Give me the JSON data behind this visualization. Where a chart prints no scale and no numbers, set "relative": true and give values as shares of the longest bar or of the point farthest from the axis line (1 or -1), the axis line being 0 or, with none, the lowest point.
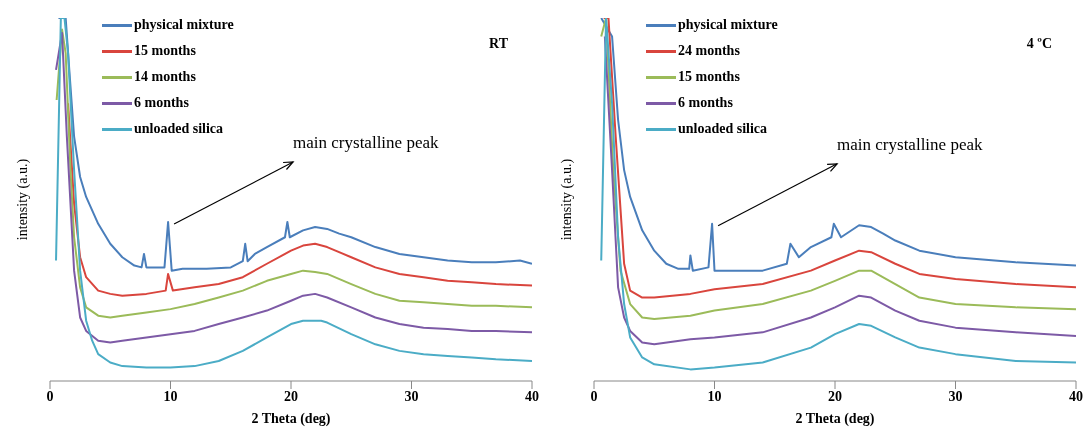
{
  "chart_data": [
    {
      "type": "line",
      "xlabel": "2 Theta (deg)",
      "ylabel": "intensity (a.u.)",
      "relative": true,
      "xlim": [
        0,
        40
      ],
      "xticks": [
        0,
        10,
        20,
        30,
        40
      ],
      "legend": "top left",
      "marker": "none",
      "grid": false,
      "annotations": [
        "RT",
        {
          "text": "main crystalline peak",
          "x": 9.8,
          "y": 0.438
        }
      ],
      "series": [
        {
          "name": "physical mixture",
          "color": "#4a7ebb",
          "x": [
            0.7,
            1.3,
            1.6,
            2,
            2.5,
            3,
            4,
            5,
            6,
            7,
            7.6,
            7.8,
            8,
            9.5,
            9.8,
            10.1,
            11,
            13,
            15,
            16,
            16.2,
            16.4,
            17,
            18,
            19.5,
            19.7,
            19.9,
            21,
            22,
            23,
            24,
            25,
            27,
            29,
            31,
            33,
            35,
            37,
            39,
            40
          ],
          "values": [
            1.0,
            1.0,
            0.857,
            0.673,
            0.562,
            0.507,
            0.433,
            0.378,
            0.341,
            0.318,
            0.313,
            0.35,
            0.313,
            0.313,
            0.438,
            0.304,
            0.309,
            0.309,
            0.313,
            0.33,
            0.378,
            0.33,
            0.35,
            0.369,
            0.396,
            0.438,
            0.396,
            0.415,
            0.424,
            0.419,
            0.406,
            0.396,
            0.369,
            0.35,
            0.341,
            0.332,
            0.327,
            0.327,
            0.332,
            0.323
          ]
        },
        {
          "name": "15 months",
          "color": "#d9453d",
          "x": [
            1.5,
            2,
            2.5,
            3,
            4,
            5,
            6,
            8,
            9.6,
            9.8,
            10.2,
            12,
            14,
            16,
            18,
            20,
            21,
            22,
            23,
            25,
            27,
            29,
            31,
            33,
            35,
            37,
            40
          ],
          "values": [
            0.765,
            0.488,
            0.341,
            0.286,
            0.249,
            0.24,
            0.235,
            0.24,
            0.249,
            0.295,
            0.249,
            0.258,
            0.267,
            0.286,
            0.323,
            0.359,
            0.373,
            0.378,
            0.369,
            0.341,
            0.313,
            0.295,
            0.286,
            0.276,
            0.272,
            0.267,
            0.263
          ]
        },
        {
          "name": "14 months",
          "color": "#9bbb59",
          "x": [
            0.55,
            1.0,
            1.3,
            1.7,
            2,
            2.5,
            3,
            4,
            5,
            6,
            8,
            10,
            12,
            14,
            16,
            18,
            20,
            21,
            22,
            23,
            25,
            27,
            29,
            31,
            33,
            35,
            37,
            40
          ],
          "values": [
            0.774,
            0.968,
            0.903,
            0.581,
            0.396,
            0.258,
            0.203,
            0.18,
            0.175,
            0.18,
            0.189,
            0.198,
            0.212,
            0.23,
            0.249,
            0.276,
            0.295,
            0.304,
            0.3,
            0.295,
            0.267,
            0.24,
            0.221,
            0.217,
            0.212,
            0.207,
            0.207,
            0.203
          ]
        },
        {
          "name": "6 months",
          "color": "#7d5aa6",
          "x": [
            0.5,
            1.0,
            1.4,
            2,
            2.5,
            3,
            4,
            5,
            6,
            8,
            10,
            12,
            14,
            16,
            18,
            20,
            21,
            22,
            23,
            25,
            27,
            29,
            31,
            33,
            35,
            37,
            40
          ],
          "values": [
            0.857,
            0.959,
            0.673,
            0.304,
            0.175,
            0.138,
            0.111,
            0.106,
            0.111,
            0.12,
            0.129,
            0.138,
            0.157,
            0.175,
            0.194,
            0.221,
            0.235,
            0.24,
            0.23,
            0.203,
            0.175,
            0.157,
            0.147,
            0.143,
            0.138,
            0.138,
            0.134
          ]
        },
        {
          "name": "unloaded silica",
          "color": "#4bacc6",
          "x": [
            0.5,
            0.9,
            1.2,
            1.5,
            2,
            2.5,
            3,
            3.5,
            4,
            5,
            6,
            8,
            10,
            12,
            14,
            16,
            18,
            20,
            21,
            22.5,
            23,
            25,
            27,
            29,
            31,
            33,
            35,
            37,
            40
          ],
          "values": [
            0.332,
            1.0,
            1.0,
            0.903,
            0.581,
            0.304,
            0.166,
            0.111,
            0.074,
            0.051,
            0.041,
            0.037,
            0.037,
            0.041,
            0.055,
            0.083,
            0.12,
            0.157,
            0.166,
            0.166,
            0.161,
            0.129,
            0.101,
            0.083,
            0.074,
            0.069,
            0.065,
            0.06,
            0.055
          ]
        }
      ]
    },
    {
      "type": "line",
      "xlabel": "2 Theta (deg)",
      "ylabel": "intensity (a.u.)",
      "relative": true,
      "xlim": [
        0,
        40
      ],
      "xticks": [
        0,
        10,
        20,
        30,
        40
      ],
      "legend": "top left",
      "marker": "none",
      "grid": false,
      "annotations": [
        "4 ºC",
        {
          "text": "main crystalline peak",
          "x": 9.8,
          "y": 0.433
        }
      ],
      "series": [
        {
          "name": "physical mixture",
          "color": "#4a7ebb",
          "x": [
            0.6,
            1.5,
            2,
            2.5,
            3,
            4,
            5,
            6,
            7,
            7.9,
            8,
            8.2,
            9.5,
            9.8,
            10,
            12,
            14,
            16,
            16.3,
            17,
            18,
            19.7,
            19.9,
            20.5,
            22,
            23,
            24,
            25,
            27,
            30,
            35,
            40
          ],
          "values": [
            1.0,
            0.949,
            0.719,
            0.581,
            0.507,
            0.415,
            0.359,
            0.323,
            0.309,
            0.309,
            0.346,
            0.304,
            0.313,
            0.433,
            0.304,
            0.304,
            0.304,
            0.323,
            0.378,
            0.341,
            0.369,
            0.396,
            0.433,
            0.396,
            0.429,
            0.424,
            0.406,
            0.387,
            0.359,
            0.341,
            0.327,
            0.318
          ]
        },
        {
          "name": "24 months",
          "color": "#d9453d",
          "x": [
            0.8,
            1.2,
            1.8,
            2.5,
            3,
            4,
            5,
            8,
            10,
            14,
            18,
            20,
            22,
            23,
            25,
            27,
            30,
            35,
            40
          ],
          "values": [
            1.0,
            1.0,
            0.673,
            0.323,
            0.249,
            0.23,
            0.23,
            0.24,
            0.253,
            0.267,
            0.304,
            0.332,
            0.359,
            0.355,
            0.323,
            0.295,
            0.281,
            0.267,
            0.258
          ]
        },
        {
          "name": "15 months",
          "color": "#9bbb59",
          "x": [
            0.6,
            1.0,
            1.6,
            2.2,
            3,
            4,
            5,
            8,
            10,
            14,
            18,
            20,
            22,
            23,
            25,
            27,
            30,
            35,
            40
          ],
          "values": [
            0.949,
            1.0,
            0.581,
            0.304,
            0.212,
            0.175,
            0.171,
            0.18,
            0.194,
            0.212,
            0.249,
            0.276,
            0.304,
            0.304,
            0.267,
            0.23,
            0.212,
            0.203,
            0.198
          ]
        },
        {
          "name": "6 months",
          "color": "#7d5aa6",
          "x": [
            0.9,
            1.5,
            2,
            2.5,
            3,
            4,
            5,
            8,
            10,
            14,
            18,
            20,
            22,
            23,
            25,
            27,
            30,
            35,
            40
          ],
          "values": [
            0.949,
            0.581,
            0.258,
            0.175,
            0.138,
            0.106,
            0.101,
            0.115,
            0.12,
            0.134,
            0.175,
            0.203,
            0.235,
            0.23,
            0.194,
            0.166,
            0.147,
            0.134,
            0.124
          ]
        },
        {
          "name": "unloaded silica",
          "color": "#4bacc6",
          "x": [
            0.6,
            1.0,
            1.5,
            2,
            2.5,
            3,
            4,
            5,
            8,
            10,
            14,
            18,
            20,
            22,
            23,
            25,
            27,
            30,
            35,
            40
          ],
          "values": [
            0.332,
            1.0,
            0.765,
            0.396,
            0.212,
            0.12,
            0.065,
            0.046,
            0.032,
            0.037,
            0.051,
            0.092,
            0.129,
            0.157,
            0.152,
            0.12,
            0.092,
            0.074,
            0.055,
            0.051
          ]
        }
      ]
    }
  ]
}
